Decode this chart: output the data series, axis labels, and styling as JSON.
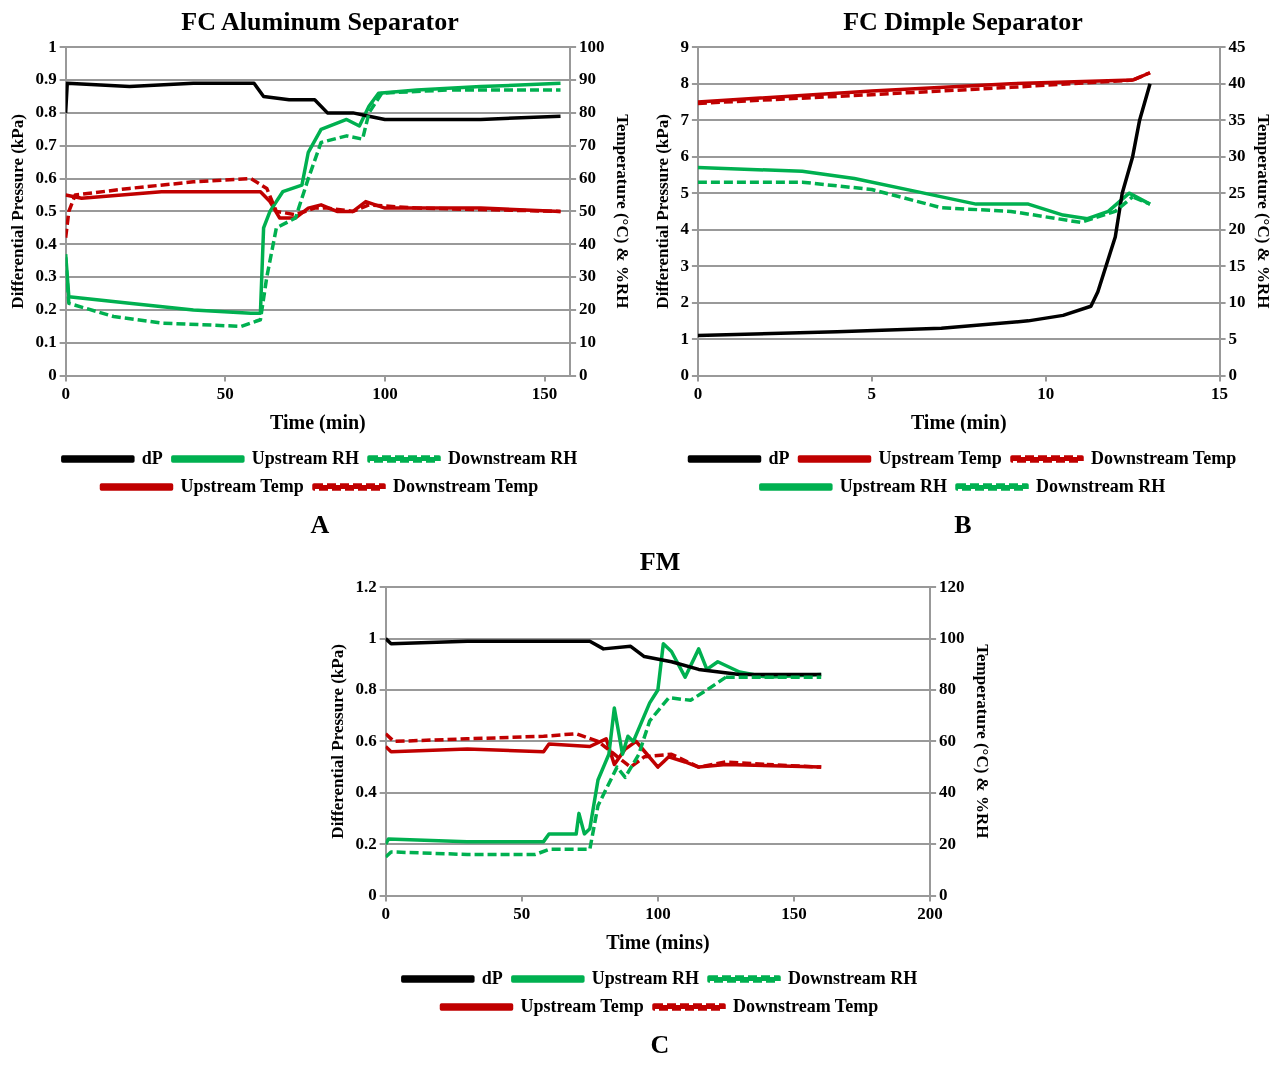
{
  "chart_data": [
    {
      "type": "line",
      "title": "FC Aluminum Separator",
      "xlabel": "Time (min)",
      "ylabel": "Differential Pressure (kPa)",
      "y2label": "Temperature (°C) & %RH",
      "annotations": [
        "A"
      ],
      "xlim": [
        0,
        158
      ],
      "xticks": [
        0,
        50,
        100,
        150
      ],
      "ylim": [
        0,
        1
      ],
      "yticks": [
        0,
        0.1,
        0.2,
        0.3,
        0.4,
        0.5,
        0.6,
        0.7,
        0.8,
        0.9,
        1
      ],
      "y2lim": [
        0,
        100
      ],
      "y2ticks": [
        0,
        10,
        20,
        30,
        40,
        50,
        60,
        70,
        80,
        90,
        100
      ],
      "grid": "y",
      "legend": "bottom",
      "series": [
        {
          "name": "dP",
          "color": "#000000",
          "line_style": "solid",
          "x": [
            0,
            0.5,
            20,
            40,
            59,
            62,
            70,
            78,
            82,
            90,
            95,
            100,
            130,
            155
          ],
          "values": [
            0.8,
            0.89,
            0.88,
            0.89,
            0.89,
            0.85,
            0.84,
            0.84,
            0.8,
            0.8,
            0.79,
            0.78,
            0.78,
            0.79
          ]
        },
        {
          "name": "Upstream RH",
          "color": "#00b050",
          "line_style": "solid",
          "axis": "y2",
          "x": [
            0,
            1,
            20,
            40,
            58,
            61,
            62,
            64,
            68,
            74,
            76,
            80,
            88,
            92,
            95,
            98,
            110,
            130,
            155
          ],
          "values": [
            37,
            24,
            22,
            20,
            19,
            19,
            45,
            50,
            56,
            58,
            68,
            75,
            78,
            76,
            82,
            86,
            87,
            88,
            89
          ]
        },
        {
          "name": "Downstream RH",
          "color": "#00b050",
          "line_style": "dashed",
          "axis": "y2",
          "x": [
            0,
            1,
            15,
            30,
            55,
            61,
            63,
            66,
            72,
            76,
            80,
            88,
            93,
            95,
            99,
            120,
            155
          ],
          "values": [
            36,
            22,
            18,
            16,
            15,
            17,
            30,
            45,
            48,
            60,
            71,
            73,
            72,
            80,
            86,
            87,
            87
          ]
        },
        {
          "name": "Upstream Temp",
          "color": "#c00000",
          "line_style": "solid",
          "axis": "y2",
          "x": [
            0,
            5,
            30,
            61,
            64,
            67,
            72,
            76,
            80,
            85,
            90,
            94,
            100,
            130,
            155
          ],
          "values": [
            55,
            54,
            56,
            56,
            53,
            48,
            48,
            51,
            52,
            50,
            50,
            53,
            51,
            51,
            50
          ]
        },
        {
          "name": "Downstream Temp",
          "color": "#c00000",
          "line_style": "dashed",
          "axis": "y2",
          "x": [
            0,
            1,
            3,
            20,
            40,
            58,
            63,
            66,
            72,
            78,
            82,
            90,
            95,
            110,
            155
          ],
          "values": [
            42,
            50,
            55,
            57,
            59,
            60,
            57,
            50,
            49,
            51,
            51,
            50,
            52,
            51,
            50
          ]
        }
      ]
    },
    {
      "type": "line",
      "title": "FC Dimple Separator",
      "xlabel": "Time (min)",
      "ylabel": "Differential Pressure (kPa)",
      "y2label": "Temperature (°C) & %RH",
      "annotations": [
        "B"
      ],
      "xlim": [
        0,
        15
      ],
      "xticks": [
        0,
        5,
        10,
        15
      ],
      "ylim": [
        0,
        9
      ],
      "yticks": [
        0,
        1,
        2,
        3,
        4,
        5,
        6,
        7,
        8,
        9
      ],
      "y2lim": [
        0,
        45
      ],
      "y2ticks": [
        0,
        5,
        10,
        15,
        20,
        25,
        30,
        35,
        40,
        45
      ],
      "grid": "y",
      "legend": "bottom",
      "series": [
        {
          "name": "dP",
          "color": "#000000",
          "line_style": "solid",
          "x": [
            0,
            4,
            7,
            9.5,
            10.5,
            11.3,
            11.5,
            12,
            12.2,
            12.5,
            12.7,
            13
          ],
          "values": [
            1.1,
            1.2,
            1.3,
            1.5,
            1.65,
            1.9,
            2.3,
            3.8,
            5,
            6,
            7,
            8
          ]
        },
        {
          "name": "Upstream Temp",
          "color": "#c00000",
          "line_style": "solid",
          "axis": "y2",
          "x": [
            0,
            5,
            9,
            12.5,
            13
          ],
          "values": [
            37.5,
            39,
            40,
            40.5,
            41.5
          ]
        },
        {
          "name": "Downstream Temp",
          "color": "#c00000",
          "line_style": "dashed",
          "axis": "y2",
          "x": [
            0,
            5,
            9,
            12.5,
            13
          ],
          "values": [
            37.3,
            38.5,
            39.5,
            40.5,
            41.5
          ]
        },
        {
          "name": "Upstream RH",
          "color": "#00b050",
          "line_style": "solid",
          "axis": "y2",
          "x": [
            0,
            3,
            4.5,
            6.5,
            8,
            9.5,
            10.5,
            11.2,
            11.8,
            12.4,
            13
          ],
          "values": [
            28.5,
            28,
            27,
            25,
            23.5,
            23.5,
            22,
            21.5,
            22.5,
            25,
            23.5
          ]
        },
        {
          "name": "Downstream RH",
          "color": "#00b050",
          "line_style": "dashed",
          "axis": "y2",
          "x": [
            0,
            3,
            5,
            7,
            9,
            11,
            12,
            12.5,
            13
          ],
          "values": [
            26.5,
            26.5,
            25.5,
            23,
            22.5,
            21,
            22.5,
            24.5,
            23.5
          ]
        }
      ]
    },
    {
      "type": "line",
      "title": "FM",
      "xlabel": "Time (mins)",
      "ylabel": "Differential Pressure (kPa)",
      "y2label": "Temperature (°C) & %RH",
      "annotations": [
        "C"
      ],
      "xlim": [
        0,
        200
      ],
      "xticks": [
        0,
        50,
        100,
        150,
        200
      ],
      "ylim": [
        0,
        1.2
      ],
      "yticks": [
        0,
        0.2,
        0.4,
        0.6,
        0.8,
        1,
        1.2
      ],
      "y2lim": [
        0,
        120
      ],
      "y2ticks": [
        0,
        20,
        40,
        60,
        80,
        100,
        120
      ],
      "grid": "y",
      "legend": "bottom",
      "series": [
        {
          "name": "dP",
          "color": "#000000",
          "line_style": "solid",
          "x": [
            0,
            2,
            30,
            60,
            75,
            80,
            90,
            95,
            105,
            115,
            130,
            160
          ],
          "values": [
            1,
            0.98,
            0.99,
            0.99,
            0.99,
            0.96,
            0.97,
            0.93,
            0.91,
            0.88,
            0.86,
            0.86
          ]
        },
        {
          "name": "Upstream RH",
          "color": "#00b050",
          "line_style": "solid",
          "axis": "y2",
          "x": [
            0,
            1,
            30,
            58,
            60,
            70,
            71,
            73,
            75,
            78,
            82,
            84,
            87,
            89,
            91,
            97,
            100,
            102,
            105,
            110,
            115,
            118,
            122,
            130,
            140,
            160
          ],
          "values": [
            20,
            22,
            21,
            21,
            24,
            24,
            32,
            24,
            26,
            45,
            55,
            73,
            55,
            62,
            60,
            75,
            80,
            98,
            95,
            85,
            96,
            88,
            91,
            87,
            85,
            86
          ]
        },
        {
          "name": "Downstream RH",
          "color": "#00b050",
          "line_style": "dashed",
          "axis": "y2",
          "x": [
            0,
            2,
            30,
            55,
            60,
            75,
            78,
            85,
            88,
            93,
            97,
            104,
            112,
            118,
            125,
            160
          ],
          "values": [
            15,
            17,
            16,
            16,
            18,
            18,
            35,
            50,
            46,
            55,
            68,
            77,
            76,
            80,
            85,
            85
          ]
        },
        {
          "name": "Upstream Temp",
          "color": "#c00000",
          "line_style": "solid",
          "axis": "y2",
          "x": [
            0,
            2,
            30,
            58,
            60,
            75,
            81,
            84,
            88,
            92,
            96,
            100,
            104,
            110,
            115,
            125,
            160
          ],
          "values": [
            58,
            56,
            57,
            56,
            59,
            58,
            61,
            51,
            57,
            60,
            55,
            50,
            54,
            52,
            50,
            51,
            50
          ]
        },
        {
          "name": "Downstream Temp",
          "color": "#c00000",
          "line_style": "dashed",
          "axis": "y2",
          "x": [
            0,
            3,
            30,
            58,
            70,
            78,
            84,
            90,
            95,
            105,
            115,
            125,
            140,
            160
          ],
          "values": [
            63,
            60,
            61,
            62,
            63,
            60,
            55,
            50,
            54,
            55,
            50,
            52,
            51,
            50
          ]
        }
      ]
    }
  ]
}
